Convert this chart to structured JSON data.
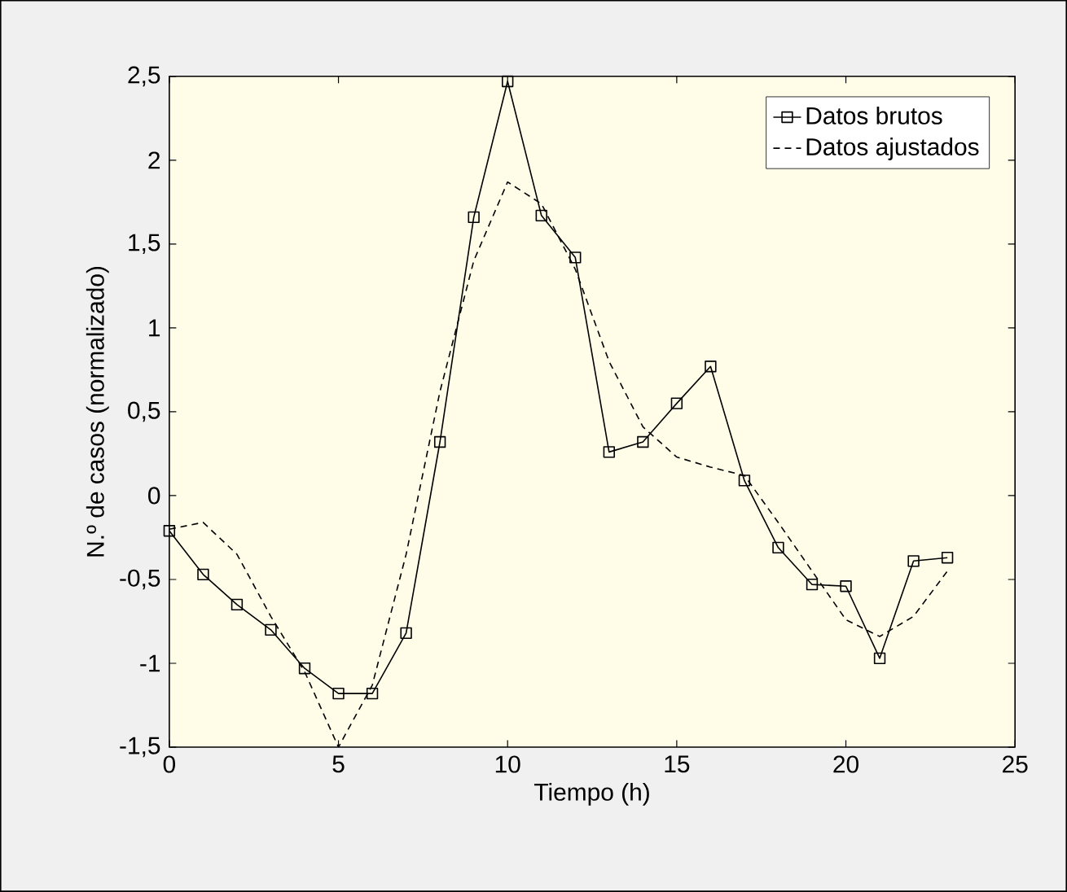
{
  "chart_data": {
    "type": "line",
    "xlabel": "Tiempo (h)",
    "ylabel": "N.º de casos (normalizado)",
    "x": [
      0,
      1,
      2,
      3,
      4,
      5,
      6,
      7,
      8,
      9,
      10,
      11,
      12,
      13,
      14,
      15,
      16,
      17,
      18,
      19,
      20,
      21,
      22,
      23
    ],
    "series": [
      {
        "name": "Datos brutos",
        "color": "#000000",
        "marker": "square",
        "line_style": "solid",
        "values": [
          -0.21,
          -0.47,
          -0.65,
          -0.8,
          -1.03,
          -1.18,
          -1.18,
          -0.82,
          0.32,
          1.66,
          2.47,
          1.67,
          1.42,
          0.26,
          0.32,
          0.55,
          0.77,
          0.09,
          -0.31,
          -0.53,
          -0.54,
          -0.97,
          -0.39,
          -0.37
        ]
      },
      {
        "name": "Datos ajustados",
        "color": "#000000",
        "marker": "none",
        "line_style": "dashed",
        "values": [
          -0.2,
          -0.16,
          -0.35,
          -0.72,
          -1.05,
          -1.5,
          -1.13,
          -0.35,
          0.62,
          1.4,
          1.87,
          1.74,
          1.35,
          0.8,
          0.41,
          0.23,
          0.17,
          0.12,
          -0.16,
          -0.45,
          -0.74,
          -0.84,
          -0.72,
          -0.45
        ]
      }
    ],
    "xlim": [
      0,
      25
    ],
    "xticks": [
      0,
      5,
      10,
      15,
      20,
      25
    ],
    "ylim": [
      -1.5,
      2.5
    ],
    "yticks": [
      {
        "value": -1.5,
        "label": "-1,5"
      },
      {
        "value": -1,
        "label": "-1"
      },
      {
        "value": -0.5,
        "label": "-0,5"
      },
      0,
      {
        "value": 0.5,
        "label": "0,5"
      },
      1,
      {
        "value": 1.5,
        "label": "1,5"
      },
      2,
      {
        "value": 2.5,
        "label": "2,5"
      }
    ],
    "grid": false,
    "legend": "top right"
  }
}
